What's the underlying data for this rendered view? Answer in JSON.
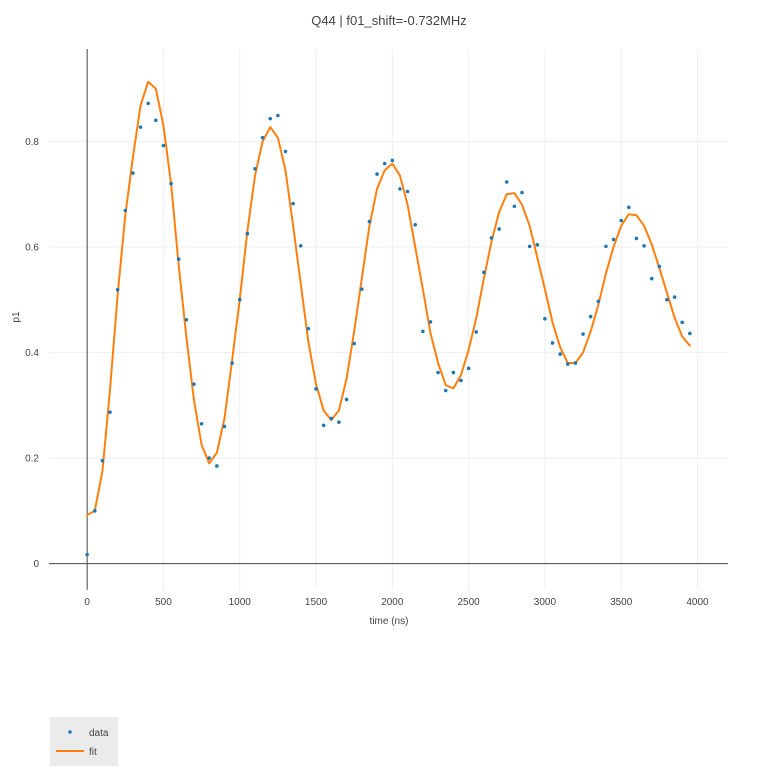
{
  "chart_data": {
    "type": "scatter",
    "title": "Q44 | f01_shift=-0.732MHz",
    "xlabel": "time (ns)",
    "ylabel": "p1",
    "xlim": [
      -250,
      4200
    ],
    "ylim": [
      -0.05,
      0.975
    ],
    "xticks": [
      0,
      500,
      1000,
      1500,
      2000,
      2500,
      3000,
      3500,
      4000
    ],
    "yticks": [
      0,
      0.2,
      0.4,
      0.6,
      0.8
    ],
    "ytick_labels": [
      "0",
      "0.2",
      "0.4",
      "0.6",
      "0.8"
    ],
    "grid": true,
    "legend_position": "bottom-left",
    "series": [
      {
        "name": "data",
        "mode": "markers",
        "color": "#1f77b4",
        "x": [
          0,
          50,
          100,
          150,
          200,
          250,
          300,
          350,
          400,
          450,
          500,
          550,
          600,
          650,
          700,
          750,
          800,
          850,
          900,
          950,
          1000,
          1050,
          1100,
          1150,
          1200,
          1250,
          1300,
          1350,
          1400,
          1450,
          1500,
          1550,
          1600,
          1650,
          1700,
          1750,
          1800,
          1850,
          1900,
          1950,
          2000,
          2050,
          2100,
          2150,
          2200,
          2250,
          2300,
          2350,
          2400,
          2450,
          2500,
          2550,
          2600,
          2650,
          2700,
          2750,
          2800,
          2850,
          2900,
          2950,
          3000,
          3050,
          3100,
          3150,
          3200,
          3250,
          3300,
          3350,
          3400,
          3450,
          3500,
          3550,
          3600,
          3650,
          3700,
          3750,
          3800,
          3850,
          3900,
          3950
        ],
        "y": [
          0.017,
          0.1,
          0.195,
          0.287,
          0.519,
          0.669,
          0.74,
          0.827,
          0.872,
          0.84,
          0.792,
          0.72,
          0.577,
          0.462,
          0.34,
          0.265,
          0.2,
          0.185,
          0.26,
          0.38,
          0.5,
          0.625,
          0.748,
          0.807,
          0.843,
          0.849,
          0.781,
          0.682,
          0.602,
          0.445,
          0.331,
          0.262,
          0.275,
          0.268,
          0.311,
          0.417,
          0.52,
          0.648,
          0.738,
          0.758,
          0.764,
          0.71,
          0.705,
          0.642,
          0.44,
          0.458,
          0.362,
          0.328,
          0.362,
          0.347,
          0.37,
          0.439,
          0.552,
          0.617,
          0.634,
          0.723,
          0.677,
          0.703,
          0.601,
          0.604,
          0.464,
          0.418,
          0.397,
          0.378,
          0.38,
          0.435,
          0.468,
          0.497,
          0.601,
          0.614,
          0.65,
          0.675,
          0.616,
          0.602,
          0.54,
          0.563,
          0.5,
          0.505,
          0.457,
          0.436
        ]
      },
      {
        "name": "fit",
        "mode": "lines",
        "color": "#ff7f0e",
        "x": [
          0,
          50,
          100,
          150,
          200,
          250,
          300,
          350,
          400,
          450,
          500,
          550,
          600,
          650,
          700,
          750,
          800,
          850,
          900,
          950,
          1000,
          1050,
          1100,
          1150,
          1200,
          1250,
          1300,
          1350,
          1400,
          1450,
          1500,
          1550,
          1600,
          1650,
          1700,
          1750,
          1800,
          1850,
          1900,
          1950,
          2000,
          2050,
          2100,
          2150,
          2200,
          2250,
          2300,
          2350,
          2400,
          2450,
          2500,
          2550,
          2600,
          2650,
          2700,
          2750,
          2800,
          2850,
          2900,
          2950,
          3000,
          3050,
          3100,
          3150,
          3200,
          3250,
          3300,
          3350,
          3400,
          3450,
          3500,
          3550,
          3600,
          3650,
          3700,
          3750,
          3800,
          3850,
          3900,
          3950
        ],
        "y": [
          0.092,
          0.1,
          0.175,
          0.33,
          0.51,
          0.66,
          0.77,
          0.868,
          0.913,
          0.9,
          0.83,
          0.72,
          0.565,
          0.43,
          0.31,
          0.225,
          0.19,
          0.21,
          0.275,
          0.385,
          0.5,
          0.63,
          0.735,
          0.8,
          0.827,
          0.807,
          0.745,
          0.64,
          0.53,
          0.42,
          0.34,
          0.29,
          0.272,
          0.29,
          0.35,
          0.44,
          0.54,
          0.64,
          0.71,
          0.745,
          0.758,
          0.735,
          0.68,
          0.6,
          0.52,
          0.437,
          0.38,
          0.338,
          0.332,
          0.357,
          0.405,
          0.465,
          0.54,
          0.61,
          0.666,
          0.7,
          0.702,
          0.68,
          0.64,
          0.58,
          0.52,
          0.457,
          0.41,
          0.38,
          0.38,
          0.4,
          0.44,
          0.49,
          0.55,
          0.6,
          0.64,
          0.662,
          0.66,
          0.64,
          0.605,
          0.56,
          0.513,
          0.466,
          0.43,
          0.413
        ]
      }
    ]
  }
}
